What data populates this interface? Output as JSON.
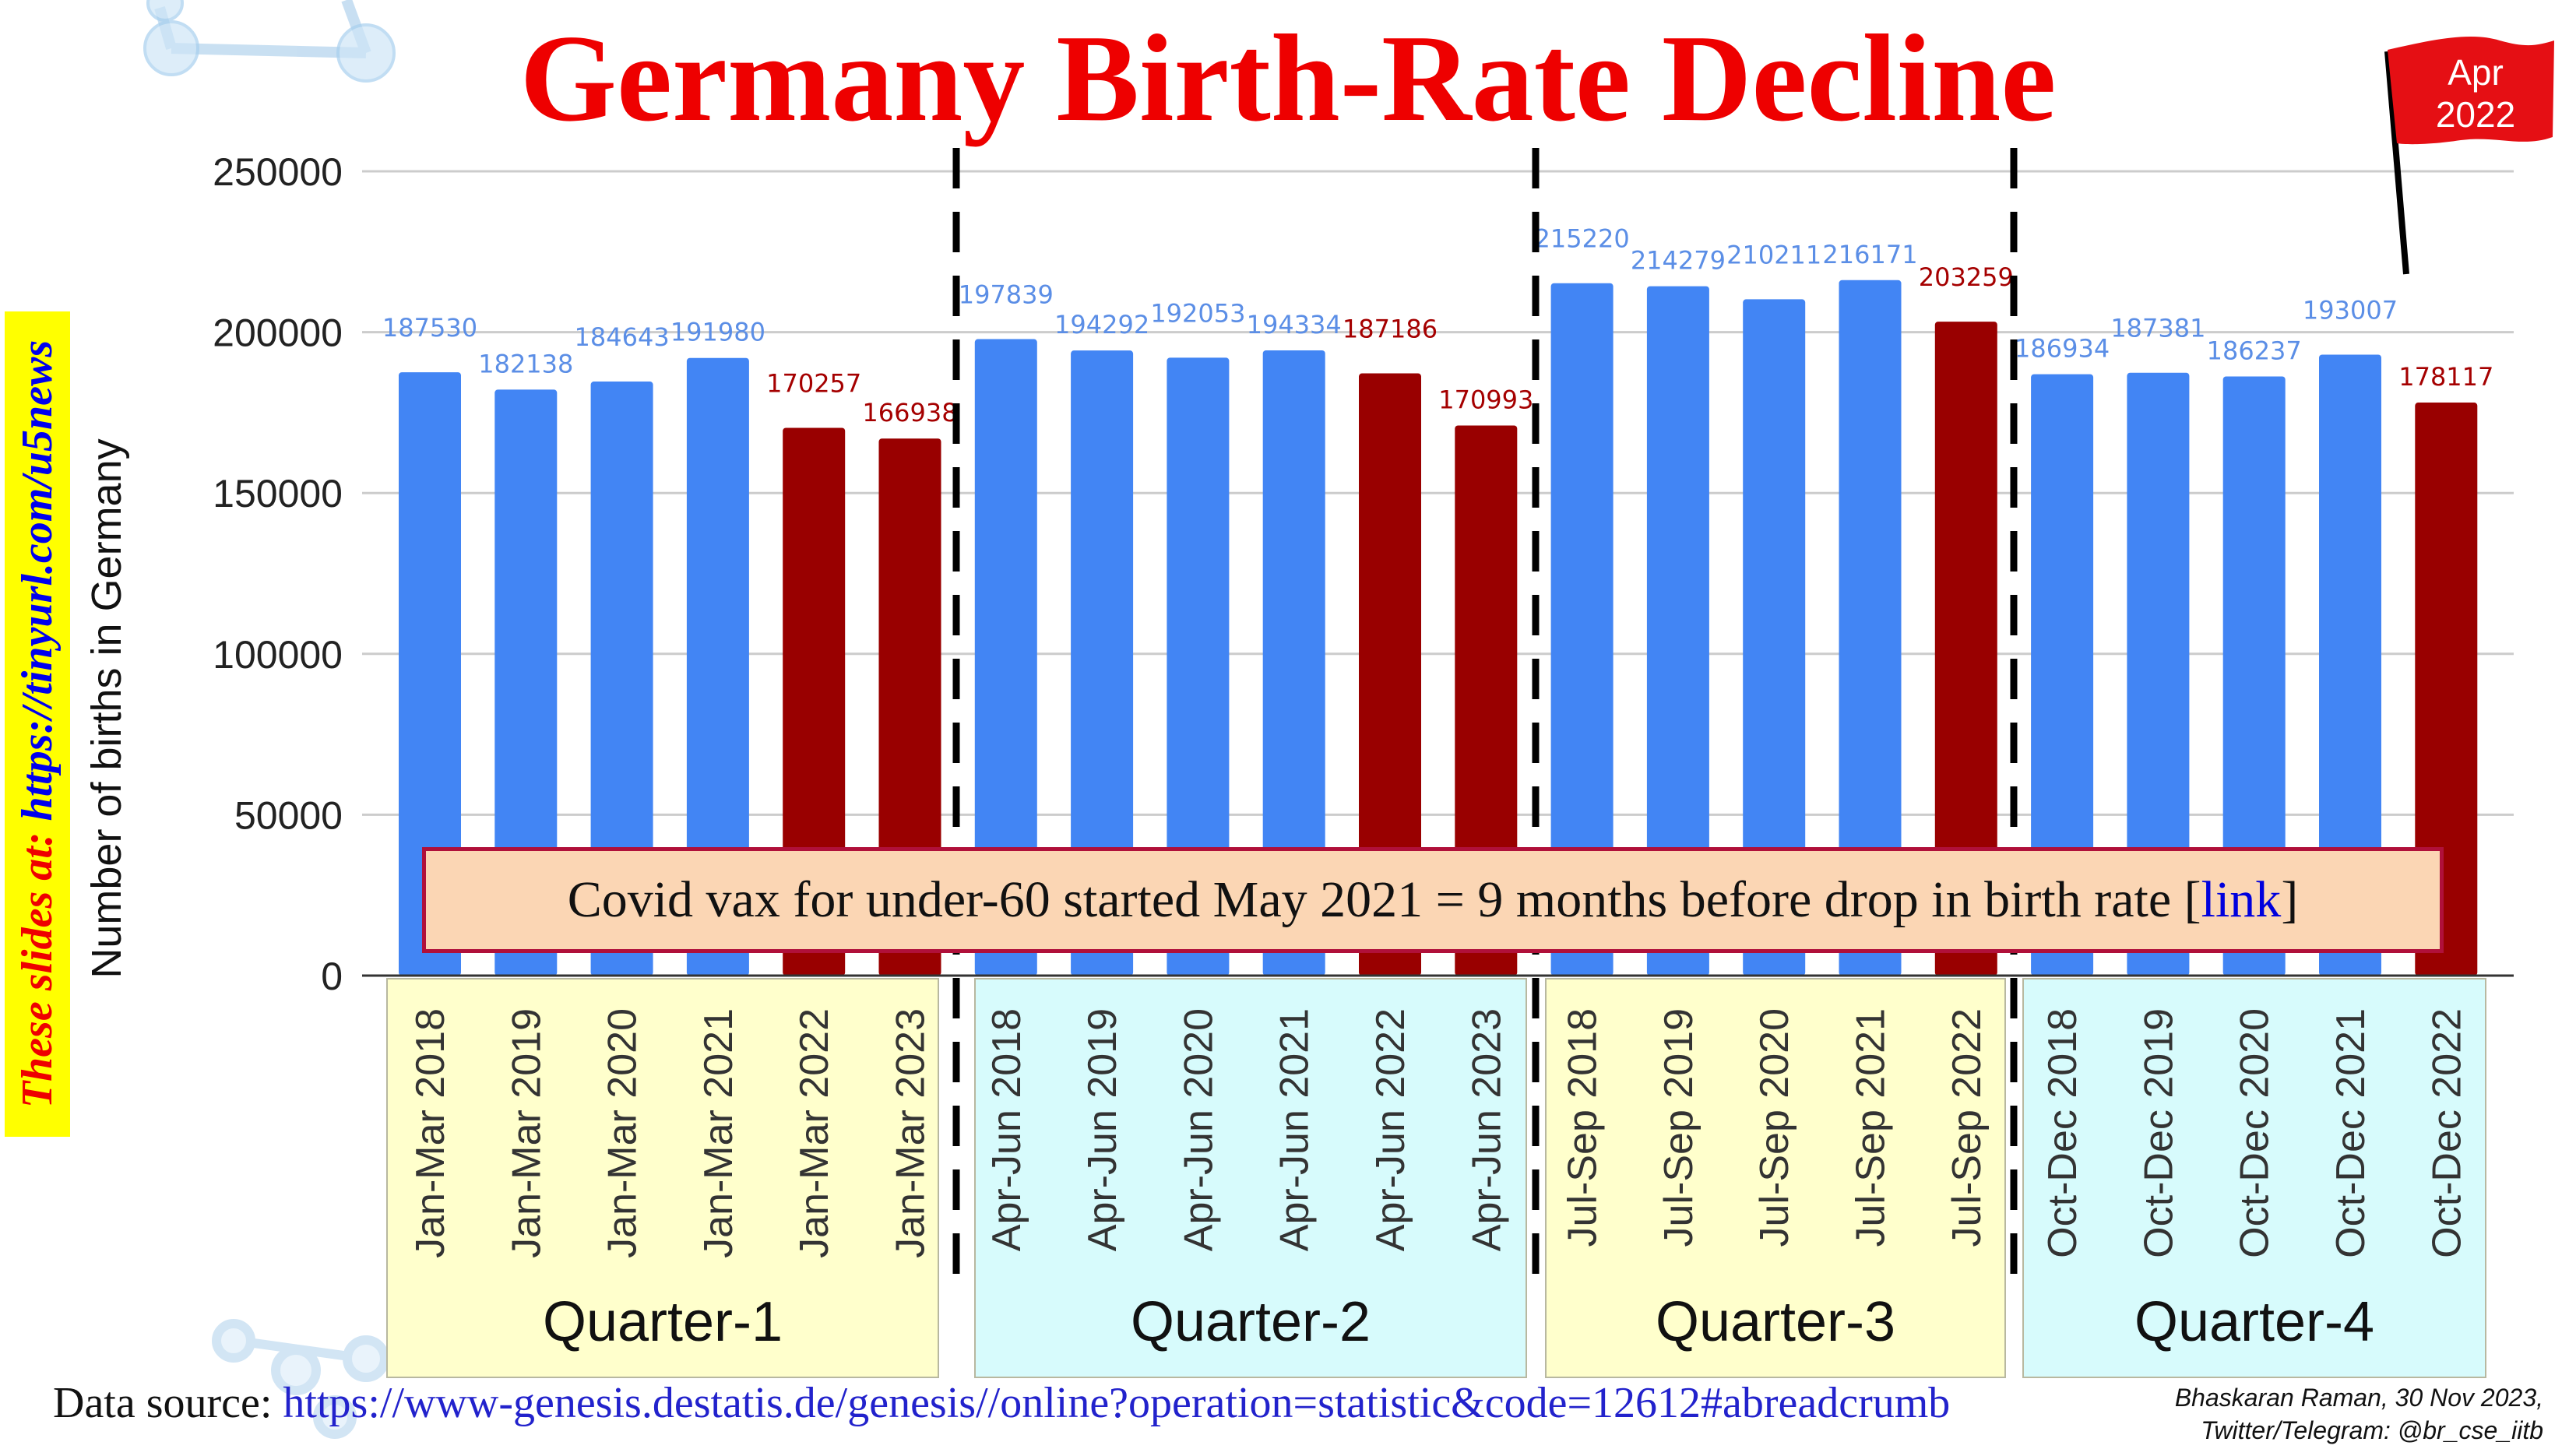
{
  "title": "Germany Birth-Rate Decline",
  "side_note": {
    "prefix": "These slides at:",
    "url": "https://tinyurl.com/u5news"
  },
  "flag": {
    "month": "Apr",
    "year": "2022"
  },
  "callout": {
    "text_before": "Covid vax for under-60 started May 2021 = 9 months before drop in birth rate [",
    "link_text": "link",
    "text_after": "]"
  },
  "source": {
    "label": "Data source:",
    "url": "https://www-genesis.destatis.de/genesis//online?operation=statistic&code=12612#abreadcrumb"
  },
  "credit": {
    "line1": "Bhaskaran Raman, 30 Nov 2023,",
    "line2": "Twitter/Telegram: @br_cse_iitb"
  },
  "colors": {
    "blue_bar": "#4285f4",
    "red_bar": "#990000",
    "blue_label": "#5b8ee6",
    "red_label": "#a50000",
    "group_yellow": "#ffffcc",
    "group_cyan": "#d7fbfc",
    "title": "#ee0000"
  },
  "chart_data": {
    "type": "bar",
    "title": "Germany Birth-Rate Decline",
    "xlabel": "",
    "ylabel": "Number of births in Germany",
    "ylim": [
      0,
      250000
    ],
    "yticks": [
      0,
      50000,
      100000,
      150000,
      200000,
      250000
    ],
    "grid": true,
    "legend": "none",
    "groups": [
      {
        "name": "Quarter-1",
        "color": "#ffffcc",
        "bars": [
          {
            "label": "Jan-Mar 2018",
            "value": 187530,
            "highlight": false
          },
          {
            "label": "Jan-Mar 2019",
            "value": 182138,
            "highlight": false
          },
          {
            "label": "Jan-Mar 2020",
            "value": 184643,
            "highlight": false
          },
          {
            "label": "Jan-Mar 2021",
            "value": 191980,
            "highlight": false
          },
          {
            "label": "Jan-Mar 2022",
            "value": 170257,
            "highlight": true
          },
          {
            "label": "Jan-Mar 2023",
            "value": 166938,
            "highlight": true
          }
        ]
      },
      {
        "name": "Quarter-2",
        "color": "#d7fbfc",
        "bars": [
          {
            "label": "Apr-Jun 2018",
            "value": 197839,
            "highlight": false
          },
          {
            "label": "Apr-Jun 2019",
            "value": 194292,
            "highlight": false
          },
          {
            "label": "Apr-Jun 2020",
            "value": 192053,
            "highlight": false
          },
          {
            "label": "Apr-Jun 2021",
            "value": 194334,
            "highlight": false
          },
          {
            "label": "Apr-Jun 2022",
            "value": 187186,
            "highlight": true
          },
          {
            "label": "Apr-Jun 2023",
            "value": 170993,
            "highlight": true
          }
        ]
      },
      {
        "name": "Quarter-3",
        "color": "#ffffcc",
        "bars": [
          {
            "label": "Jul-Sep 2018",
            "value": 215220,
            "highlight": false
          },
          {
            "label": "Jul-Sep 2019",
            "value": 214279,
            "highlight": false
          },
          {
            "label": "Jul-Sep 2020",
            "value": 210211,
            "highlight": false
          },
          {
            "label": "Jul-Sep 2021",
            "value": 216171,
            "highlight": false
          },
          {
            "label": "Jul-Sep 2022",
            "value": 203259,
            "highlight": true
          }
        ]
      },
      {
        "name": "Quarter-4",
        "color": "#d7fbfc",
        "bars": [
          {
            "label": "Oct-Dec 2018",
            "value": 186934,
            "highlight": false
          },
          {
            "label": "Oct-Dec 2019",
            "value": 187381,
            "highlight": false
          },
          {
            "label": "Oct-Dec 2020",
            "value": 186237,
            "highlight": false
          },
          {
            "label": "Oct-Dec 2021",
            "value": 193007,
            "highlight": false
          },
          {
            "label": "Oct-Dec 2022",
            "value": 178117,
            "highlight": true
          }
        ]
      }
    ]
  }
}
